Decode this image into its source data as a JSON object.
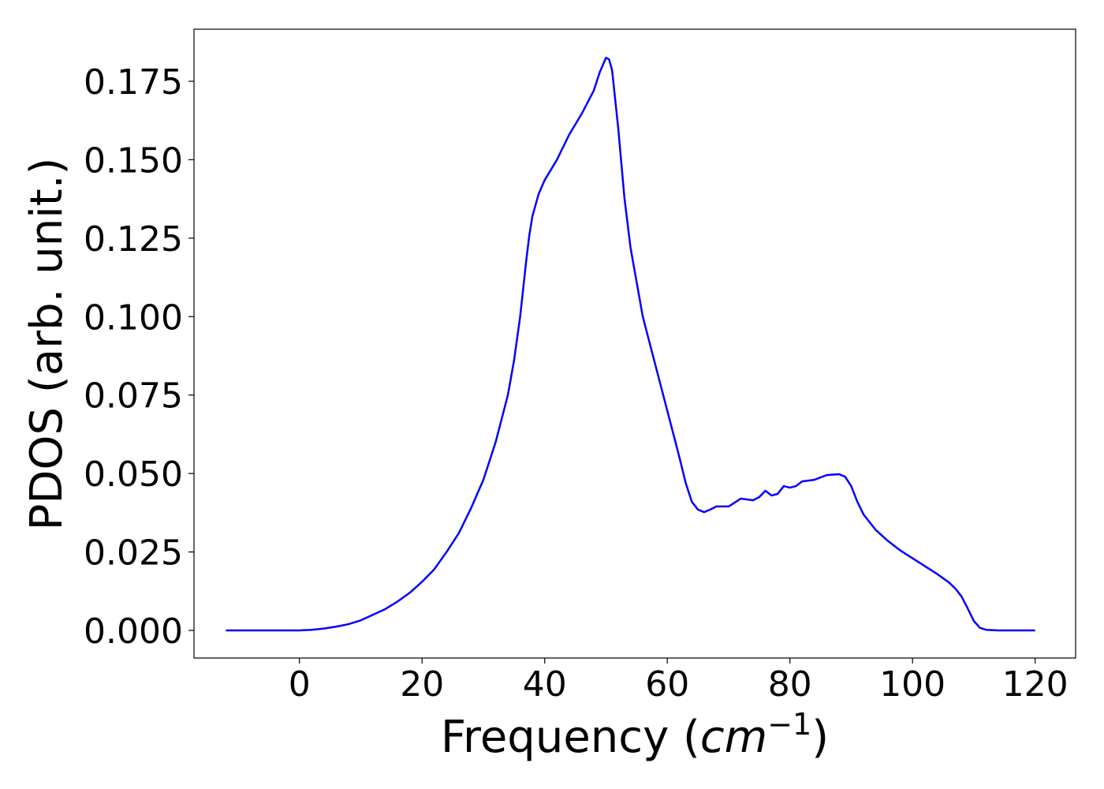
{
  "chart_data": {
    "type": "line",
    "xlabel": [
      "Frequency (",
      "cm",
      "−1",
      ")"
    ],
    "ylabel": "PDOS (arb. unit.)",
    "x": [
      -12,
      -5,
      0,
      2,
      4,
      6,
      8,
      10,
      12,
      14,
      16,
      18,
      20,
      22,
      24,
      26,
      28,
      30,
      32,
      34,
      35,
      36,
      37,
      37.5,
      38,
      39,
      40,
      42,
      44,
      46,
      48,
      49,
      50,
      50.5,
      51,
      52,
      53,
      54,
      56,
      58,
      60,
      62,
      63,
      64,
      65,
      66,
      67,
      68,
      70,
      72,
      74,
      75,
      76,
      77,
      78,
      79,
      80,
      81,
      82,
      84,
      86,
      88,
      89,
      90,
      91,
      92,
      94,
      96,
      98,
      100,
      102,
      104,
      106,
      107,
      108,
      109,
      110,
      111,
      112,
      114,
      120
    ],
    "series": [
      {
        "color": "#0000ff",
        "values": [
          0,
          0,
          0,
          0.0002,
          0.0006,
          0.0012,
          0.002,
          0.0032,
          0.005,
          0.0068,
          0.0092,
          0.012,
          0.0155,
          0.0195,
          0.025,
          0.031,
          0.039,
          0.048,
          0.06,
          0.075,
          0.086,
          0.1,
          0.118,
          0.126,
          0.132,
          0.139,
          0.1435,
          0.15,
          0.158,
          0.1645,
          0.172,
          0.178,
          0.1825,
          0.182,
          0.1785,
          0.16,
          0.138,
          0.122,
          0.1,
          0.085,
          0.07,
          0.055,
          0.047,
          0.041,
          0.0385,
          0.0377,
          0.0385,
          0.0395,
          0.0395,
          0.042,
          0.0415,
          0.0425,
          0.0445,
          0.043,
          0.0435,
          0.046,
          0.0455,
          0.046,
          0.0475,
          0.048,
          0.0495,
          0.0498,
          0.049,
          0.046,
          0.041,
          0.037,
          0.032,
          0.0285,
          0.0255,
          0.023,
          0.0205,
          0.018,
          0.0152,
          0.0133,
          0.0108,
          0.007,
          0.003,
          0.0008,
          0.0002,
          0,
          0
        ]
      }
    ],
    "xlim": [
      -17.2,
      126.6
    ],
    "ylim": [
      -0.0088,
      0.1916
    ],
    "xticks": [
      0,
      20,
      40,
      60,
      80,
      100,
      120
    ],
    "yticks": [
      {
        "value": 0,
        "label": "0.000"
      },
      0.025,
      {
        "value": 0.05,
        "label": "0.050"
      },
      0.075,
      {
        "value": 0.1,
        "label": "0.100"
      },
      0.125,
      {
        "value": 0.15,
        "label": "0.150"
      },
      0.175
    ]
  }
}
